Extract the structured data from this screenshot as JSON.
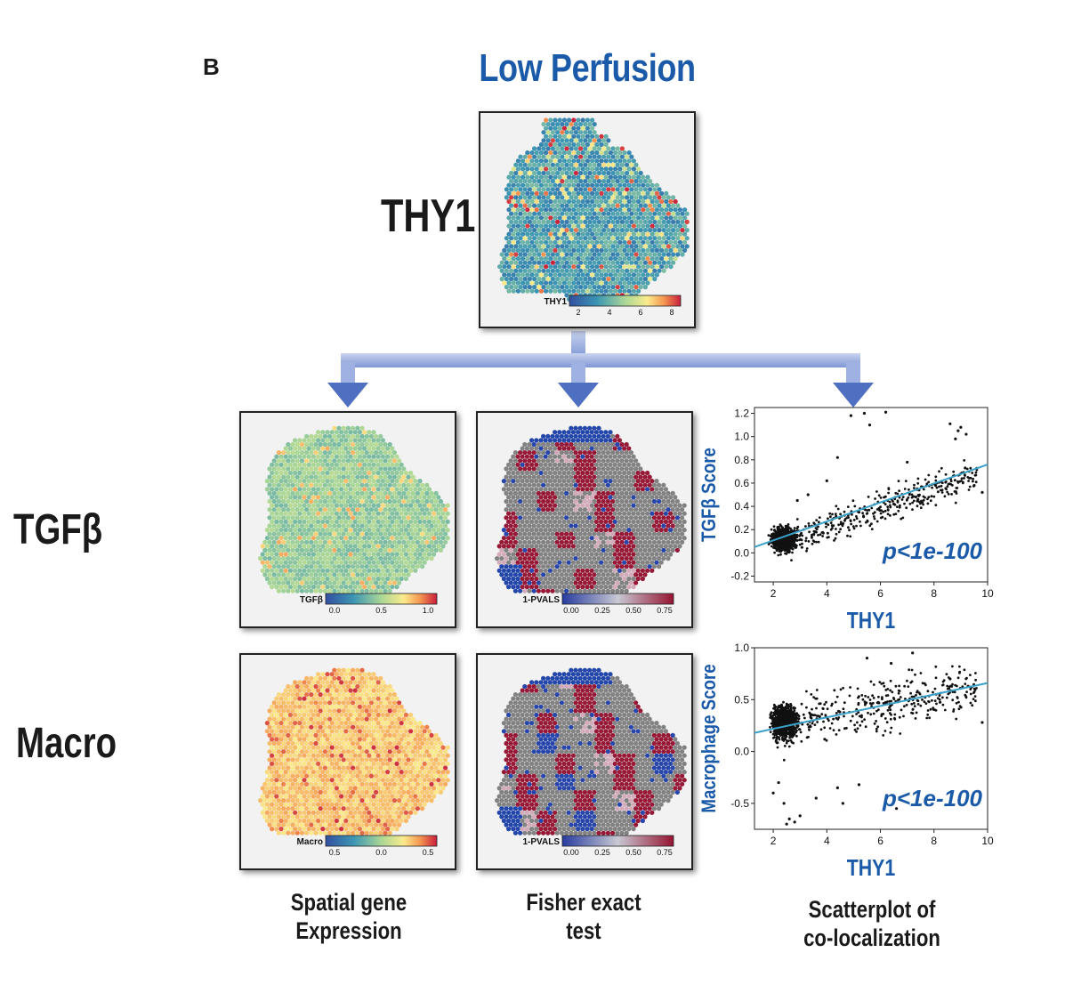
{
  "panel_letter": "B",
  "title": "Low Perfusion",
  "labels": {
    "top_gene": "THY1",
    "row1": "TGFβ",
    "row2": "Macro"
  },
  "maps": {
    "thy1": {
      "colorbar_label": "THY1",
      "ticks": [
        "2",
        "4",
        "6",
        "8"
      ]
    },
    "tgfb_spatial": {
      "colorbar_label": "TGFβ",
      "ticks": [
        "0.0",
        "0.5",
        "1.0"
      ]
    },
    "tgfb_fisher": {
      "colorbar_label": "1-PVALS",
      "ticks": [
        "0.00",
        "0.25",
        "0.50",
        "0.75"
      ]
    },
    "macro_spatial": {
      "colorbar_label": "Macro",
      "ticks": [
        "0.5",
        "0.0",
        "0.5"
      ]
    },
    "macro_fisher": {
      "colorbar_label": "1-PVALS",
      "ticks": [
        "0.00",
        "0.25",
        "0.50",
        "0.75"
      ]
    }
  },
  "captions": {
    "spatial": [
      "Spatial gene",
      "Expression"
    ],
    "fisher": [
      "Fisher exact",
      "test"
    ],
    "scatter": [
      "Scatterplot of",
      "co-localization"
    ]
  },
  "colors": {
    "accent_blue": "#1a5aa8",
    "fit_line": "#3aa0c8",
    "arrow": "#4f6fc0"
  },
  "chart_data": [
    {
      "type": "scatter",
      "title": "",
      "xlabel": "THY1",
      "ylabel": "TGFβ Score",
      "xlim": [
        1.3,
        10
      ],
      "ylim": [
        -0.25,
        1.25
      ],
      "xticks": [
        2,
        4,
        6,
        8,
        10
      ],
      "yticks": [
        -0.2,
        0.0,
        0.2,
        0.4,
        0.6,
        0.8,
        1.0,
        1.2
      ],
      "fit_line": {
        "x": [
          1.3,
          10
        ],
        "y": [
          0.05,
          0.76
        ]
      },
      "annotation": "p<1e-100",
      "seed": 7,
      "points": [
        [
          4.9,
          1.18
        ],
        [
          5.4,
          1.2
        ],
        [
          6.2,
          1.21
        ],
        [
          4.4,
          0.82
        ],
        [
          5.6,
          1.1
        ],
        [
          8.6,
          1.11
        ],
        [
          8.9,
          1.05
        ],
        [
          9.0,
          1.08
        ],
        [
          8.8,
          0.98
        ],
        [
          9.2,
          1.02
        ],
        [
          7.0,
          0.78
        ],
        [
          4.0,
          0.62
        ],
        [
          6.5,
          0.42
        ],
        [
          7.4,
          0.46
        ],
        [
          8.1,
          0.6
        ],
        [
          9.5,
          0.58
        ],
        [
          9.8,
          0.52
        ],
        [
          5.2,
          0.35
        ],
        [
          3.3,
          0.5
        ],
        [
          2.9,
          0.45
        ]
      ]
    },
    {
      "type": "scatter",
      "title": "",
      "xlabel": "THY1",
      "ylabel": "Macrophage Score",
      "xlim": [
        1.3,
        10
      ],
      "ylim": [
        -0.75,
        1.0
      ],
      "xticks": [
        2,
        4,
        6,
        8,
        10
      ],
      "yticks": [
        -0.5,
        0.0,
        0.5,
        1.0
      ],
      "fit_line": {
        "x": [
          1.3,
          10
        ],
        "y": [
          0.18,
          0.66
        ]
      },
      "annotation": "p<1e-100",
      "seed": 11,
      "points": [
        [
          2.2,
          -0.3
        ],
        [
          2.4,
          -0.5
        ],
        [
          2.6,
          -0.65
        ],
        [
          2.5,
          -0.7
        ],
        [
          2.8,
          -0.68
        ],
        [
          3.0,
          -0.62
        ],
        [
          2.0,
          -0.4
        ],
        [
          4.4,
          -0.35
        ],
        [
          4.6,
          -0.5
        ],
        [
          5.2,
          -0.32
        ],
        [
          6.6,
          -0.55
        ],
        [
          3.6,
          -0.45
        ],
        [
          7.2,
          0.95
        ],
        [
          5.5,
          0.9
        ],
        [
          6.4,
          0.85
        ],
        [
          8.6,
          0.7
        ],
        [
          9.4,
          0.62
        ],
        [
          9.8,
          0.28
        ]
      ]
    }
  ]
}
